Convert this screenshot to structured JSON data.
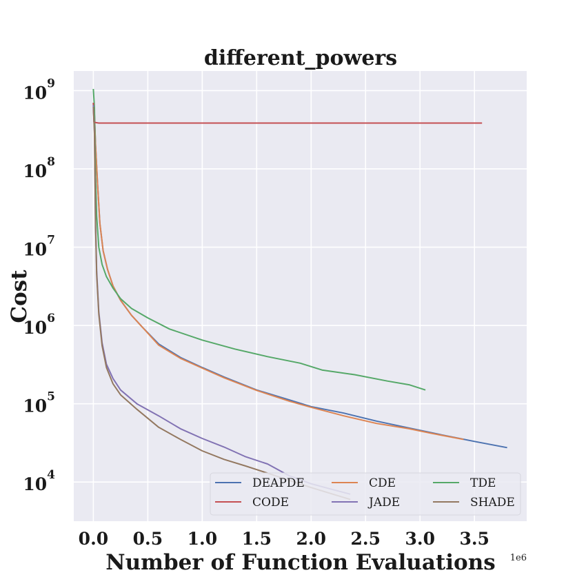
{
  "chart_data": {
    "type": "line",
    "title": "different_powers",
    "xlabel": "Number of Function Evaluations",
    "ylabel": "Cost",
    "x_offset_label": "1e6",
    "xscale": "linear",
    "yscale": "log",
    "xlim": [
      -0.18,
      3.98
    ],
    "ylim_log10": [
      3.5,
      9.25
    ],
    "xticks": [
      0.0,
      0.5,
      1.0,
      1.5,
      2.0,
      2.5,
      3.0,
      3.5
    ],
    "xtick_labels": [
      "0.0",
      "0.5",
      "1.0",
      "1.5",
      "2.0",
      "2.5",
      "3.0",
      "3.5"
    ],
    "ytick_exponents": [
      4,
      5,
      6,
      7,
      8,
      9
    ],
    "ytick_base": "10",
    "grid": true,
    "legend_position": "lower-right",
    "legend_columns": 3,
    "series": [
      {
        "name": "DEAPDE",
        "color": "#4c72b0",
        "points": [
          [
            0,
            680000000.0
          ],
          [
            0.01,
            500000000.0
          ],
          [
            0.02,
            200000000.0
          ],
          [
            0.04,
            60000000.0
          ],
          [
            0.06,
            20000000.0
          ],
          [
            0.09,
            9000000.0
          ],
          [
            0.13,
            5200000.0
          ],
          [
            0.18,
            3200000.0
          ],
          [
            0.25,
            2100000.0
          ],
          [
            0.35,
            1350000.0
          ],
          [
            0.45,
            950000.0
          ],
          [
            0.6,
            580000.0
          ],
          [
            0.8,
            390000.0
          ],
          [
            1.0,
            290000.0
          ],
          [
            1.2,
            220000.0
          ],
          [
            1.5,
            150000.0
          ],
          [
            1.8,
            112000.0
          ],
          [
            2.0,
            92000.0
          ],
          [
            2.3,
            76000.0
          ],
          [
            2.6,
            60000.0
          ],
          [
            2.9,
            49000.0
          ],
          [
            3.2,
            40000.0
          ],
          [
            3.5,
            33000.0
          ],
          [
            3.8,
            27500.0
          ]
        ]
      },
      {
        "name": "CDE",
        "color": "#dd8452",
        "points": [
          [
            0,
            680000000.0
          ],
          [
            0.01,
            500000000.0
          ],
          [
            0.02,
            200000000.0
          ],
          [
            0.04,
            60000000.0
          ],
          [
            0.06,
            20000000.0
          ],
          [
            0.09,
            9000000.0
          ],
          [
            0.13,
            5200000.0
          ],
          [
            0.18,
            3200000.0
          ],
          [
            0.25,
            2100000.0
          ],
          [
            0.35,
            1350000.0
          ],
          [
            0.45,
            950000.0
          ],
          [
            0.6,
            560000.0
          ],
          [
            0.8,
            380000.0
          ],
          [
            1.0,
            285000.0
          ],
          [
            1.2,
            215000.0
          ],
          [
            1.5,
            148000.0
          ],
          [
            1.8,
            108000.0
          ],
          [
            2.0,
            90000.0
          ],
          [
            2.3,
            70000.0
          ],
          [
            2.6,
            56000.0
          ],
          [
            2.9,
            48000.0
          ],
          [
            3.1,
            42000.0
          ],
          [
            3.4,
            35000.0
          ]
        ]
      },
      {
        "name": "TDE",
        "color": "#55a868",
        "points": [
          [
            0,
            1050000000.0
          ],
          [
            0.01,
            600000000.0
          ],
          [
            0.02,
            80000000.0
          ],
          [
            0.03,
            25000000.0
          ],
          [
            0.05,
            10000000.0
          ],
          [
            0.08,
            6000000.0
          ],
          [
            0.12,
            4200000.0
          ],
          [
            0.18,
            3000000.0
          ],
          [
            0.25,
            2200000.0
          ],
          [
            0.35,
            1650000.0
          ],
          [
            0.5,
            1250000.0
          ],
          [
            0.7,
            900000.0
          ],
          [
            1.0,
            650000.0
          ],
          [
            1.3,
            500000.0
          ],
          [
            1.6,
            400000.0
          ],
          [
            1.9,
            330000.0
          ],
          [
            2.1,
            270000.0
          ],
          [
            2.4,
            235000.0
          ],
          [
            2.7,
            195000.0
          ],
          [
            2.9,
            175000.0
          ],
          [
            3.05,
            150000.0
          ]
        ]
      },
      {
        "name": "CODE",
        "color": "#c44e52",
        "points": [
          [
            0,
            700000000.0
          ],
          [
            0.005,
            400000000.0
          ],
          [
            0.02,
            390000000.0
          ],
          [
            0.05,
            385000000.0
          ],
          [
            0.5,
            385000000.0
          ],
          [
            1.0,
            385000000.0
          ],
          [
            2.0,
            385000000.0
          ],
          [
            3.0,
            385000000.0
          ],
          [
            3.57,
            385000000.0
          ]
        ]
      },
      {
        "name": "JADE",
        "color": "#8172b3",
        "points": [
          [
            0,
            650000000.0
          ],
          [
            0.01,
            300000000.0
          ],
          [
            0.02,
            20000000.0
          ],
          [
            0.03,
            5000000.0
          ],
          [
            0.05,
            1500000.0
          ],
          [
            0.08,
            600000.0
          ],
          [
            0.12,
            320000.0
          ],
          [
            0.18,
            210000.0
          ],
          [
            0.25,
            150000.0
          ],
          [
            0.4,
            100000.0
          ],
          [
            0.6,
            70000.0
          ],
          [
            0.8,
            48000.0
          ],
          [
            1.0,
            36000.0
          ],
          [
            1.2,
            28000.0
          ],
          [
            1.4,
            21000.0
          ],
          [
            1.6,
            17000.0
          ],
          [
            1.8,
            12000.0
          ],
          [
            2.0,
            9500.0
          ],
          [
            2.2,
            8000.0
          ],
          [
            2.36,
            7000.0
          ]
        ]
      },
      {
        "name": "SHADE",
        "color": "#937860",
        "points": [
          [
            0,
            620000000.0
          ],
          [
            0.01,
            280000000.0
          ],
          [
            0.02,
            18000000.0
          ],
          [
            0.03,
            4500000.0
          ],
          [
            0.05,
            1400000.0
          ],
          [
            0.08,
            550000.0
          ],
          [
            0.12,
            290000.0
          ],
          [
            0.18,
            180000.0
          ],
          [
            0.25,
            130000.0
          ],
          [
            0.4,
            85000.0
          ],
          [
            0.6,
            50000.0
          ],
          [
            0.8,
            35000.0
          ],
          [
            1.0,
            25000.0
          ],
          [
            1.2,
            19500.0
          ],
          [
            1.4,
            16000.0
          ],
          [
            1.6,
            13000.0
          ],
          [
            1.8,
            10500.0
          ],
          [
            2.0,
            8500.0
          ],
          [
            2.2,
            7000.0
          ],
          [
            2.36,
            6000.0
          ]
        ]
      }
    ]
  }
}
